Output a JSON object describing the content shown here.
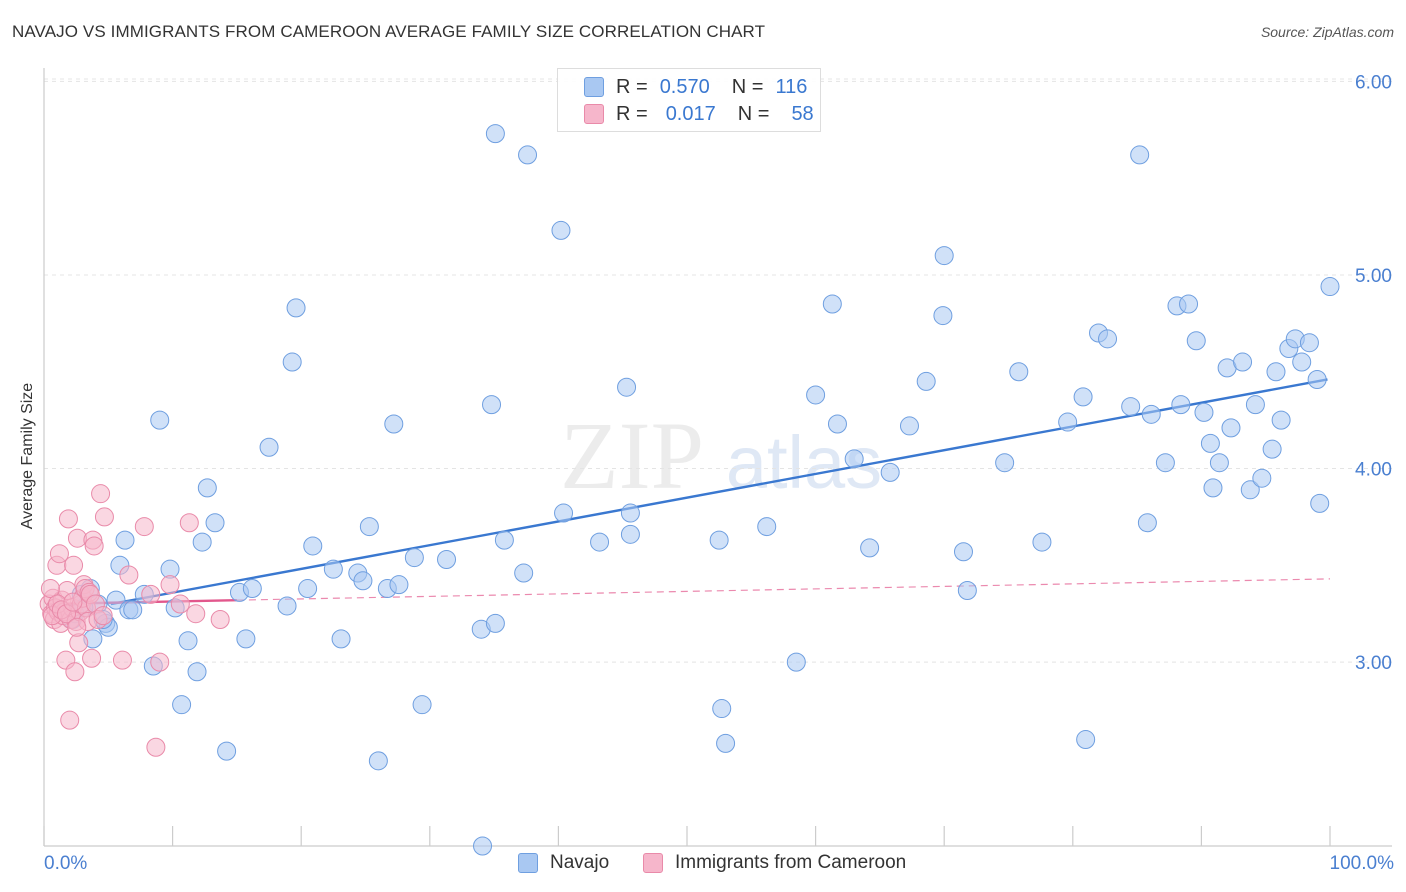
{
  "title": "NAVAJO VS IMMIGRANTS FROM CAMEROON AVERAGE FAMILY SIZE CORRELATION CHART",
  "source": "Source: ZipAtlas.com",
  "watermark": {
    "zip": "ZIP",
    "atlas": "atlas"
  },
  "legend": {
    "r_label": "R =",
    "n_label": "N =",
    "rows": [
      {
        "r": "0.570",
        "n": "116",
        "color": "#a9c8f2",
        "border": "#6f9fe0"
      },
      {
        "r": "0.017",
        "n": "58",
        "color": "#f6b6cb",
        "border": "#e98aa9"
      }
    ]
  },
  "bottom_legend": [
    {
      "label": "Navajo",
      "color": "#a9c8f2",
      "border": "#6f9fe0"
    },
    {
      "label": "Immigrants from Cameroon",
      "color": "#f6b6cb",
      "border": "#e98aa9"
    }
  ],
  "chart_data": {
    "type": "scatter",
    "title": "NAVAJO VS IMMIGRANTS FROM CAMEROON AVERAGE FAMILY SIZE CORRELATION CHART",
    "xlabel": "",
    "ylabel": "Average Family Size",
    "x_tick_labels": [
      "0.0%",
      "100.0%"
    ],
    "y_ticks": [
      3.0,
      4.0,
      5.0,
      6.0
    ],
    "y_tick_labels": [
      "3.00",
      "4.00",
      "5.00",
      "6.00"
    ],
    "xlim": [
      0,
      100
    ],
    "ylim": [
      2.05,
      6.1
    ],
    "grid": true,
    "legend_position": "top-center",
    "series": [
      {
        "name": "Navajo",
        "color": "#a9c8f2",
        "stroke": "#6f9fe0",
        "trend": {
          "x": [
            5.2,
            99.8
          ],
          "y": [
            3.3,
            4.46
          ],
          "color": "#3a78d0",
          "style": "solid"
        },
        "points": [
          [
            2.4,
            3.25
          ],
          [
            2.9,
            3.35
          ],
          [
            3.6,
            3.38
          ],
          [
            3.8,
            3.12
          ],
          [
            4.2,
            3.3
          ],
          [
            4.8,
            3.2
          ],
          [
            5.0,
            3.18
          ],
          [
            4.6,
            3.22
          ],
          [
            5.6,
            3.32
          ],
          [
            5.9,
            3.5
          ],
          [
            6.3,
            3.63
          ],
          [
            6.6,
            3.27
          ],
          [
            6.9,
            3.27
          ],
          [
            7.8,
            3.35
          ],
          [
            8.5,
            2.98
          ],
          [
            9.0,
            4.25
          ],
          [
            9.8,
            3.48
          ],
          [
            10.2,
            3.28
          ],
          [
            10.7,
            2.78
          ],
          [
            11.2,
            3.11
          ],
          [
            11.9,
            2.95
          ],
          [
            12.3,
            3.62
          ],
          [
            12.7,
            3.9
          ],
          [
            13.3,
            3.72
          ],
          [
            14.2,
            2.54
          ],
          [
            15.2,
            3.36
          ],
          [
            15.7,
            3.12
          ],
          [
            16.2,
            3.38
          ],
          [
            17.5,
            4.11
          ],
          [
            18.9,
            3.29
          ],
          [
            19.3,
            4.55
          ],
          [
            19.6,
            4.83
          ],
          [
            20.5,
            3.38
          ],
          [
            20.9,
            3.6
          ],
          [
            23.1,
            3.12
          ],
          [
            22.5,
            3.48
          ],
          [
            24.4,
            3.46
          ],
          [
            24.8,
            3.42
          ],
          [
            25.3,
            3.7
          ],
          [
            26.0,
            2.49
          ],
          [
            26.7,
            3.38
          ],
          [
            27.2,
            4.23
          ],
          [
            27.6,
            3.4
          ],
          [
            28.8,
            3.54
          ],
          [
            29.4,
            2.78
          ],
          [
            31.3,
            3.53
          ],
          [
            34.0,
            3.17
          ],
          [
            34.8,
            4.33
          ],
          [
            35.1,
            5.73
          ],
          [
            34.1,
            2.05
          ],
          [
            35.1,
            3.2
          ],
          [
            35.8,
            3.63
          ],
          [
            37.3,
            3.46
          ],
          [
            37.6,
            5.62
          ],
          [
            40.4,
            3.77
          ],
          [
            40.2,
            5.23
          ],
          [
            43.2,
            3.62
          ],
          [
            45.6,
            3.66
          ],
          [
            45.6,
            3.77
          ],
          [
            45.3,
            4.42
          ],
          [
            52.5,
            3.63
          ],
          [
            52.7,
            2.76
          ],
          [
            53.0,
            2.58
          ],
          [
            56.2,
            3.7
          ],
          [
            58.5,
            3.0
          ],
          [
            60.0,
            4.38
          ],
          [
            61.7,
            4.23
          ],
          [
            61.3,
            4.85
          ],
          [
            63.0,
            4.05
          ],
          [
            64.2,
            3.59
          ],
          [
            65.8,
            3.98
          ],
          [
            67.3,
            4.22
          ],
          [
            68.6,
            4.45
          ],
          [
            69.9,
            4.79
          ],
          [
            70.0,
            5.1
          ],
          [
            71.5,
            3.57
          ],
          [
            71.8,
            3.37
          ],
          [
            74.7,
            4.03
          ],
          [
            75.8,
            4.5
          ],
          [
            77.6,
            3.62
          ],
          [
            79.6,
            4.24
          ],
          [
            80.8,
            4.37
          ],
          [
            81.0,
            2.6
          ],
          [
            82.0,
            4.7
          ],
          [
            82.7,
            4.67
          ],
          [
            84.5,
            4.32
          ],
          [
            85.2,
            5.62
          ],
          [
            85.8,
            3.72
          ],
          [
            86.1,
            4.28
          ],
          [
            87.2,
            4.03
          ],
          [
            88.1,
            4.84
          ],
          [
            88.4,
            4.33
          ],
          [
            89.0,
            4.85
          ],
          [
            89.6,
            4.66
          ],
          [
            90.2,
            4.29
          ],
          [
            90.7,
            4.13
          ],
          [
            90.9,
            3.9
          ],
          [
            91.4,
            4.03
          ],
          [
            92.0,
            4.52
          ],
          [
            92.3,
            4.21
          ],
          [
            93.2,
            4.55
          ],
          [
            93.8,
            3.89
          ],
          [
            94.2,
            4.33
          ],
          [
            94.7,
            3.95
          ],
          [
            95.5,
            4.1
          ],
          [
            95.8,
            4.5
          ],
          [
            96.2,
            4.25
          ],
          [
            96.8,
            4.62
          ],
          [
            97.3,
            4.67
          ],
          [
            97.8,
            4.55
          ],
          [
            98.4,
            4.65
          ],
          [
            99.0,
            4.46
          ],
          [
            99.2,
            3.82
          ],
          [
            100.0,
            4.94
          ],
          [
            2.2,
            3.22
          ],
          [
            3.1,
            3.28
          ]
        ]
      },
      {
        "name": "Immigrants from Cameroon",
        "color": "#f6b6cb",
        "stroke": "#e98aa9",
        "trend": {
          "x": [
            0.3,
            15.0
          ],
          "y": [
            3.3,
            3.32
          ],
          "color": "#e2578c",
          "style": "solid",
          "extended": {
            "x": [
              15.0,
              100.0
            ],
            "y": [
              3.32,
              3.43
            ],
            "style": "dashed"
          }
        },
        "points": [
          [
            0.4,
            3.3
          ],
          [
            0.6,
            3.25
          ],
          [
            0.7,
            3.33
          ],
          [
            0.8,
            3.22
          ],
          [
            0.9,
            3.28
          ],
          [
            1.0,
            3.5
          ],
          [
            1.1,
            3.26
          ],
          [
            1.2,
            3.56
          ],
          [
            1.3,
            3.2
          ],
          [
            1.4,
            3.32
          ],
          [
            1.5,
            3.24
          ],
          [
            1.6,
            3.26
          ],
          [
            1.7,
            3.01
          ],
          [
            1.8,
            3.37
          ],
          [
            1.9,
            3.74
          ],
          [
            2.0,
            2.7
          ],
          [
            2.1,
            3.22
          ],
          [
            2.2,
            3.28
          ],
          [
            2.3,
            3.5
          ],
          [
            2.4,
            2.95
          ],
          [
            2.5,
            3.21
          ],
          [
            2.6,
            3.64
          ],
          [
            2.7,
            3.1
          ],
          [
            2.8,
            3.26
          ],
          [
            2.9,
            3.3
          ],
          [
            3.0,
            3.33
          ],
          [
            3.1,
            3.4
          ],
          [
            3.2,
            3.38
          ],
          [
            3.3,
            3.28
          ],
          [
            3.4,
            3.21
          ],
          [
            3.5,
            3.36
          ],
          [
            3.6,
            3.35
          ],
          [
            3.7,
            3.02
          ],
          [
            3.8,
            3.63
          ],
          [
            3.9,
            3.6
          ],
          [
            4.0,
            3.3
          ],
          [
            4.2,
            3.22
          ],
          [
            4.4,
            3.87
          ],
          [
            4.6,
            3.24
          ],
          [
            4.7,
            3.75
          ],
          [
            6.1,
            3.01
          ],
          [
            6.6,
            3.45
          ],
          [
            7.8,
            3.7
          ],
          [
            8.3,
            3.35
          ],
          [
            8.7,
            2.56
          ],
          [
            9.0,
            3.0
          ],
          [
            9.8,
            3.4
          ],
          [
            10.6,
            3.3
          ],
          [
            11.3,
            3.72
          ],
          [
            11.8,
            3.25
          ],
          [
            13.7,
            3.22
          ],
          [
            0.5,
            3.38
          ],
          [
            0.65,
            3.24
          ],
          [
            1.05,
            3.3
          ],
          [
            1.35,
            3.27
          ],
          [
            1.75,
            3.25
          ],
          [
            2.25,
            3.31
          ],
          [
            2.55,
            3.18
          ]
        ]
      }
    ]
  }
}
